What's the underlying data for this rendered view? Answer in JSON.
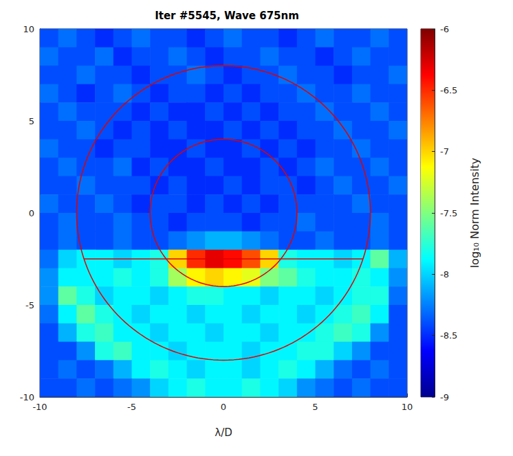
{
  "chart_data": {
    "type": "heatmap",
    "title": "Iter #5545, Wave 675nm",
    "x_label": "λ/D",
    "xlim": [
      -10,
      10
    ],
    "xticks": [
      -10,
      -5,
      0,
      5,
      10
    ],
    "ylim": [
      -10,
      10
    ],
    "yticks": [
      -10,
      -5,
      0,
      5,
      10
    ],
    "grid": false,
    "cells": {
      "x": [
        -9.5,
        -8.5,
        -7.5,
        -6.5,
        -5.5,
        -4.5,
        -3.5,
        -2.5,
        -1.5,
        -0.5,
        0.5,
        1.5,
        2.5,
        3.5,
        4.5,
        5.5,
        6.5,
        7.5,
        8.5,
        9.5
      ],
      "y": [
        9.5,
        8.5,
        7.5,
        6.5,
        5.5,
        4.5,
        3.5,
        2.5,
        1.5,
        0.5,
        -0.5,
        -1.5,
        -2.5,
        -3.5,
        -4.5,
        -5.5,
        -6.5,
        -7.5,
        -8.5,
        -9.5
      ],
      "values": [
        [
          -8.4,
          -8.3,
          -8.4,
          -8.5,
          -8.4,
          -8.3,
          -8.4,
          -8.4,
          -8.5,
          -8.4,
          -8.3,
          -8.4,
          -8.4,
          -8.5,
          -8.4,
          -8.3,
          -8.4,
          -8.4,
          -8.3,
          -8.4
        ],
        [
          -8.3,
          -8.4,
          -8.4,
          -8.3,
          -8.5,
          -8.4,
          -8.4,
          -8.3,
          -8.4,
          -8.5,
          -8.4,
          -8.4,
          -8.3,
          -8.4,
          -8.4,
          -8.5,
          -8.4,
          -8.3,
          -8.4,
          -8.4
        ],
        [
          -8.4,
          -8.4,
          -8.3,
          -8.4,
          -8.4,
          -8.5,
          -8.4,
          -8.4,
          -8.3,
          -8.4,
          -8.5,
          -8.4,
          -8.4,
          -8.3,
          -8.4,
          -8.4,
          -8.5,
          -8.4,
          -8.4,
          -8.3
        ],
        [
          -8.3,
          -8.4,
          -8.5,
          -8.4,
          -8.3,
          -8.4,
          -8.5,
          -8.4,
          -8.4,
          -8.5,
          -8.4,
          -8.5,
          -8.4,
          -8.4,
          -8.3,
          -8.4,
          -8.4,
          -8.3,
          -8.4,
          -8.4
        ],
        [
          -8.4,
          -8.3,
          -8.4,
          -8.4,
          -8.4,
          -8.5,
          -8.4,
          -8.5,
          -8.5,
          -8.4,
          -8.5,
          -8.4,
          -8.5,
          -8.4,
          -8.4,
          -8.3,
          -8.4,
          -8.4,
          -8.3,
          -8.4
        ],
        [
          -8.4,
          -8.4,
          -8.3,
          -8.4,
          -8.5,
          -8.4,
          -8.5,
          -8.4,
          -8.5,
          -8.5,
          -8.4,
          -8.5,
          -8.4,
          -8.5,
          -8.4,
          -8.4,
          -8.3,
          -8.4,
          -8.4,
          -8.3
        ],
        [
          -8.3,
          -8.4,
          -8.4,
          -8.5,
          -8.4,
          -8.4,
          -8.5,
          -8.5,
          -8.4,
          -8.5,
          -8.5,
          -8.4,
          -8.5,
          -8.4,
          -8.5,
          -8.4,
          -8.4,
          -8.3,
          -8.4,
          -8.4
        ],
        [
          -8.4,
          -8.3,
          -8.4,
          -8.4,
          -8.3,
          -8.5,
          -8.4,
          -8.5,
          -8.5,
          -8.4,
          -8.5,
          -8.5,
          -8.4,
          -8.5,
          -8.4,
          -8.3,
          -8.4,
          -8.4,
          -8.3,
          -8.4
        ],
        [
          -8.4,
          -8.4,
          -8.3,
          -8.4,
          -8.4,
          -8.4,
          -8.5,
          -8.4,
          -8.5,
          -8.5,
          -8.4,
          -8.5,
          -8.4,
          -8.4,
          -8.5,
          -8.4,
          -8.3,
          -8.4,
          -8.4,
          -8.3
        ],
        [
          -8.3,
          -8.4,
          -8.4,
          -8.3,
          -8.4,
          -8.5,
          -8.4,
          -8.4,
          -8.5,
          -8.4,
          -8.5,
          -8.4,
          -8.5,
          -8.4,
          -8.4,
          -8.4,
          -8.4,
          -8.3,
          -8.4,
          -8.4
        ],
        [
          -8.4,
          -8.3,
          -8.4,
          -8.4,
          -8.3,
          -8.4,
          -8.4,
          -8.5,
          -8.4,
          -8.4,
          -8.4,
          -8.5,
          -8.4,
          -8.4,
          -8.3,
          -8.4,
          -8.4,
          -8.4,
          -8.3,
          -8.4
        ],
        [
          -8.4,
          -8.3,
          -8.4,
          -8.4,
          -8.3,
          -8.4,
          -8.4,
          -8.3,
          -8.2,
          -8.1,
          -8.1,
          -8.2,
          -8.3,
          -8.4,
          -8.4,
          -8.3,
          -8.4,
          -8.4,
          -8.3,
          -8.4
        ],
        [
          -8.3,
          -8.0,
          -7.9,
          -7.9,
          -8.0,
          -7.9,
          -7.8,
          -7.0,
          -6.5,
          -6.3,
          -6.4,
          -6.6,
          -7.0,
          -7.8,
          -7.9,
          -7.9,
          -8.0,
          -7.9,
          -7.6,
          -8.1
        ],
        [
          -8.2,
          -7.9,
          -7.9,
          -7.9,
          -7.8,
          -7.9,
          -7.8,
          -7.4,
          -7.1,
          -7.0,
          -7.1,
          -7.2,
          -7.5,
          -7.6,
          -7.8,
          -7.9,
          -7.9,
          -7.8,
          -7.9,
          -8.2
        ],
        [
          -8.2,
          -7.6,
          -7.8,
          -8.0,
          -7.9,
          -7.9,
          -8.0,
          -7.9,
          -7.8,
          -7.8,
          -7.9,
          -7.9,
          -8.0,
          -7.9,
          -7.9,
          -8.0,
          -7.9,
          -7.8,
          -7.8,
          -8.3
        ],
        [
          -8.3,
          -7.9,
          -7.6,
          -7.8,
          -7.9,
          -8.0,
          -7.9,
          -7.9,
          -8.0,
          -7.9,
          -7.9,
          -8.0,
          -7.9,
          -7.9,
          -8.0,
          -7.9,
          -7.8,
          -7.7,
          -7.9,
          -8.4
        ],
        [
          -8.4,
          -8.1,
          -7.8,
          -7.7,
          -7.9,
          -7.9,
          -8.0,
          -7.9,
          -7.9,
          -8.0,
          -7.9,
          -7.9,
          -8.0,
          -7.9,
          -7.9,
          -7.8,
          -7.7,
          -7.8,
          -8.2,
          -8.4
        ],
        [
          -8.4,
          -8.4,
          -8.2,
          -7.8,
          -7.7,
          -7.9,
          -7.9,
          -8.0,
          -7.9,
          -7.9,
          -7.9,
          -8.0,
          -7.9,
          -7.9,
          -7.8,
          -7.8,
          -8.0,
          -8.2,
          -8.4,
          -8.4
        ],
        [
          -8.4,
          -8.3,
          -8.4,
          -8.3,
          -8.1,
          -7.9,
          -7.8,
          -7.9,
          -8.0,
          -7.9,
          -7.9,
          -8.0,
          -7.9,
          -7.8,
          -7.9,
          -8.1,
          -8.3,
          -8.4,
          -8.3,
          -8.4
        ],
        [
          -8.4,
          -8.4,
          -8.3,
          -8.4,
          -8.3,
          -8.2,
          -8.0,
          -7.9,
          -7.8,
          -7.9,
          -7.9,
          -7.8,
          -7.9,
          -8.0,
          -8.2,
          -8.3,
          -8.4,
          -8.3,
          -8.4,
          -8.4
        ]
      ]
    },
    "colorbar": {
      "range": [
        -9,
        -6
      ],
      "ticks": [
        -9,
        -8.5,
        -8,
        -7.5,
        -7,
        -6.5,
        -6
      ],
      "label": "log₁₀ Norm Intensity"
    },
    "circles": {
      "radii": [
        4,
        8
      ],
      "color": "#e00000"
    },
    "segment": {
      "x": [
        -7.6,
        7.6
      ],
      "y": [
        -2.5,
        -2.5
      ],
      "color": "#e00000"
    }
  }
}
